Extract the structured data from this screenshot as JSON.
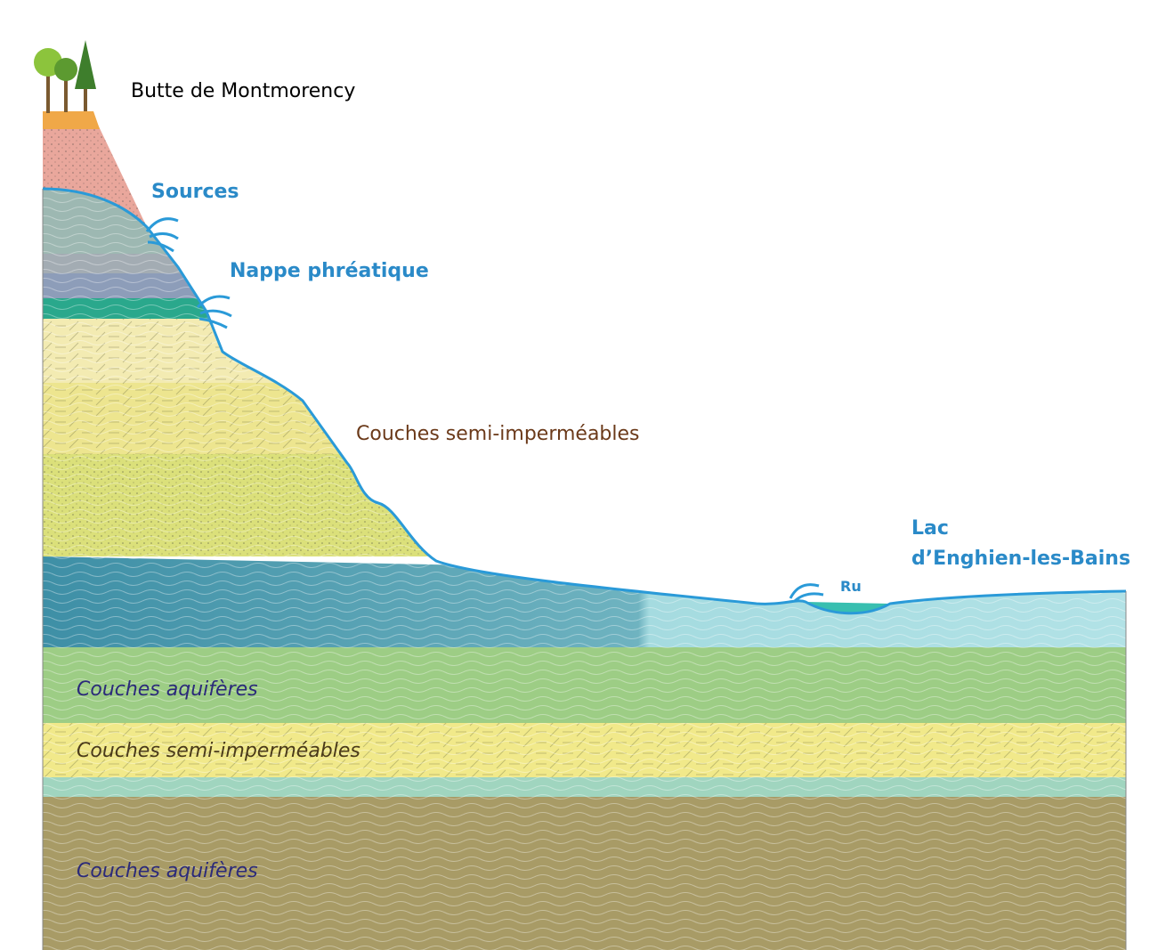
{
  "title": "Butte de Montmorency",
  "labels": {
    "sources": "Sources",
    "water_table": "Nappe phréatique",
    "upper_layers": "Couches semi-imperméables",
    "lake": [
      "Lac",
      "d’Enghien-les-Bains"
    ],
    "stream": "Ru"
  },
  "layers": [
    "Couches aquifères",
    "Couches semi-imperméables",
    "Couches aquifères"
  ]
}
